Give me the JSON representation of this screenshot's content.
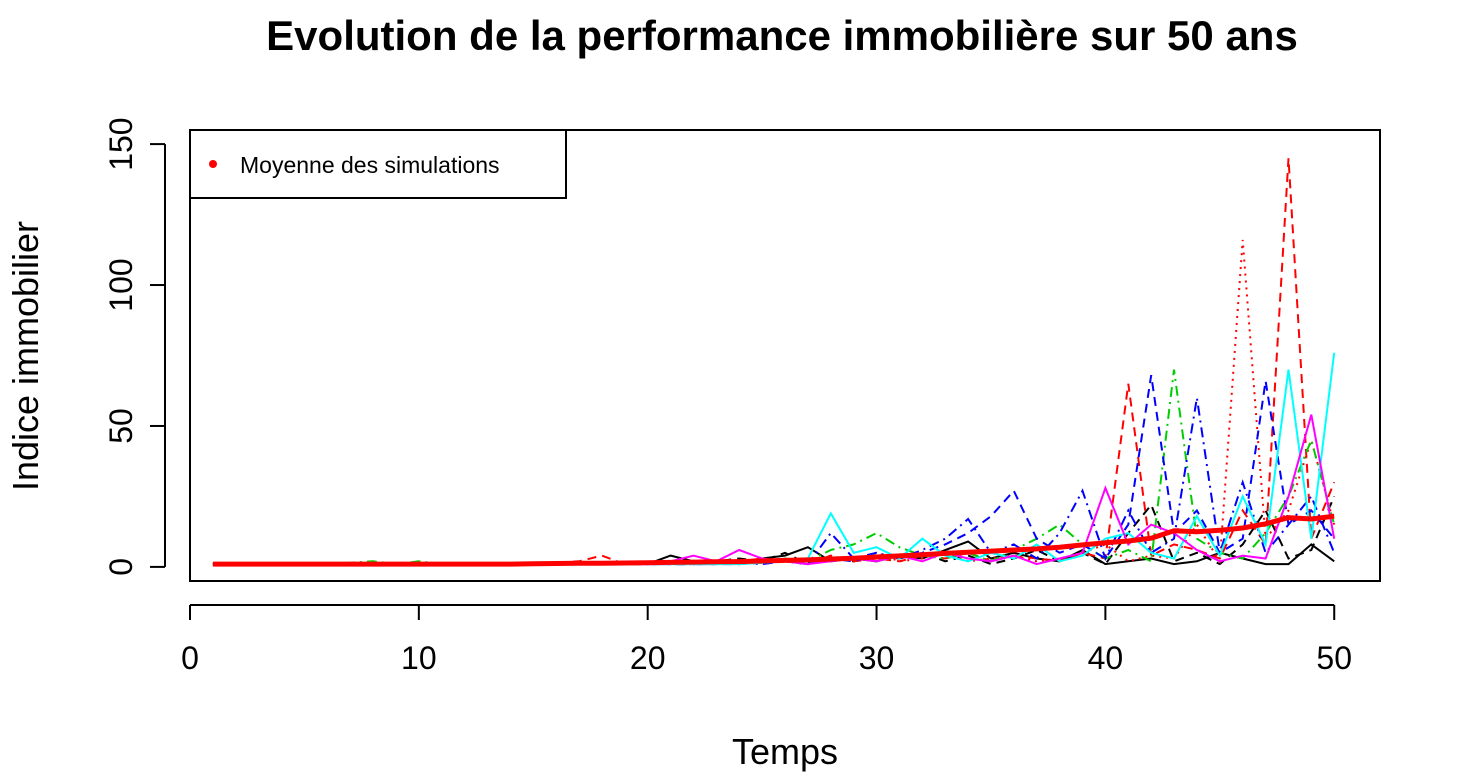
{
  "chart_data": {
    "type": "line",
    "title": "Evolution de la performance immobilière sur 50 ans",
    "xlabel": "Temps",
    "ylabel": "Indice immobilier",
    "xlim": [
      0,
      52
    ],
    "ylim": [
      -5,
      155
    ],
    "xticks": [
      0,
      10,
      20,
      30,
      40,
      50
    ],
    "yticks": [
      0,
      50,
      100,
      150
    ],
    "x": [
      1,
      2,
      3,
      4,
      5,
      6,
      7,
      8,
      9,
      10,
      11,
      12,
      13,
      14,
      15,
      16,
      17,
      18,
      19,
      20,
      21,
      22,
      23,
      24,
      25,
      26,
      27,
      28,
      29,
      30,
      31,
      32,
      33,
      34,
      35,
      36,
      37,
      38,
      39,
      40,
      41,
      42,
      43,
      44,
      45,
      46,
      47,
      48,
      49,
      50
    ],
    "legend": {
      "position": "top-left",
      "label": "Moyenne des simulations",
      "color": "#ff0000"
    },
    "mean_series": {
      "color": "#ff0000",
      "values": [
        1,
        1,
        1,
        1,
        1,
        1,
        1,
        1,
        1,
        1,
        1,
        1,
        1,
        1,
        1.1,
        1.2,
        1.3,
        1.3,
        1.4,
        1.5,
        1.6,
        1.7,
        1.8,
        1.9,
        2.1,
        2.3,
        2.5,
        2.8,
        3.1,
        3.5,
        3.9,
        4.3,
        4.8,
        5.2,
        5.6,
        6.0,
        6.4,
        7.0,
        7.8,
        8.6,
        9.2,
        10.2,
        12.8,
        12.5,
        13.0,
        13.8,
        15.3,
        17.5,
        17.0,
        18.0
      ]
    },
    "series": [
      {
        "color": "#000000",
        "dash": "",
        "values": [
          1,
          1,
          1,
          1,
          1,
          1,
          1,
          1,
          1,
          1,
          1,
          1,
          1,
          1,
          1,
          1.2,
          1,
          1.3,
          1.5,
          1,
          4,
          2,
          2,
          1.5,
          3,
          4,
          7,
          2,
          3,
          2,
          4,
          3,
          6,
          9,
          3,
          5,
          3,
          2,
          6,
          1,
          2,
          3,
          1,
          2,
          5,
          3,
          1,
          1,
          8,
          2
        ]
      },
      {
        "color": "#000000",
        "dash": "9,6",
        "values": [
          1,
          1,
          1,
          1,
          1,
          1,
          1,
          1,
          1,
          1,
          1,
          1,
          1,
          1,
          1.2,
          1.5,
          1,
          1,
          1.6,
          1.2,
          2,
          1,
          2,
          3,
          2,
          5,
          1,
          3,
          2,
          4,
          3,
          5,
          2,
          4,
          1,
          3,
          6,
          2,
          5,
          1,
          12,
          22,
          2,
          5,
          1,
          8,
          20,
          3,
          6,
          25
        ]
      },
      {
        "color": "#ff0000",
        "dash": "9,6",
        "values": [
          1,
          1,
          1,
          1,
          1,
          1,
          1,
          1,
          1,
          1,
          1,
          1,
          1,
          1,
          1,
          1.5,
          2,
          4,
          1,
          1.5,
          2,
          1,
          2,
          2,
          3,
          2,
          1,
          4,
          2,
          3,
          2,
          4,
          3,
          5,
          2,
          4,
          3,
          2,
          5,
          3,
          65,
          4,
          8,
          6,
          3,
          20,
          8,
          145,
          10,
          30
        ]
      },
      {
        "color": "#ff0000",
        "dash": "2,5",
        "values": [
          1,
          1,
          1,
          1,
          1,
          1,
          1,
          1,
          1,
          1,
          1,
          1,
          1,
          1,
          1,
          1,
          1,
          1.5,
          1,
          1.5,
          2,
          1,
          2,
          1,
          3,
          2,
          1,
          3,
          2,
          5,
          2,
          3,
          6,
          2,
          3,
          4,
          2,
          3,
          5,
          8,
          2,
          4,
          3,
          15,
          2,
          116,
          10,
          20,
          45,
          15
        ]
      },
      {
        "color": "#00cd00",
        "dash": "10,5,2,5",
        "values": [
          1,
          1,
          1,
          1,
          1,
          1,
          1.5,
          2,
          1,
          2,
          1,
          1,
          1,
          1,
          1,
          1.5,
          1,
          1,
          1,
          1.5,
          1,
          1,
          2,
          1,
          2,
          3,
          2,
          6,
          8,
          12,
          7,
          4,
          3,
          5,
          2,
          6,
          10,
          15,
          8,
          3,
          6,
          2,
          70,
          10,
          5,
          3,
          12,
          25,
          45,
          15
        ]
      },
      {
        "color": "#0000ff",
        "dash": "9,6",
        "values": [
          1,
          1,
          1,
          1,
          1,
          1,
          1,
          1,
          1,
          1,
          1,
          1,
          1,
          1,
          1,
          1,
          1,
          1,
          1,
          1,
          1,
          1,
          1,
          1,
          1.5,
          2,
          1,
          3,
          2,
          4,
          3,
          5,
          8,
          12,
          18,
          27,
          10,
          5,
          8,
          3,
          15,
          68,
          12,
          20,
          5,
          10,
          66,
          15,
          20,
          10
        ]
      },
      {
        "color": "#0000ff",
        "dash": "10,5,2,5",
        "values": [
          1,
          1,
          1,
          1,
          1,
          1,
          1,
          1,
          1,
          1,
          1,
          1,
          1,
          1,
          1,
          1,
          1,
          1,
          1,
          1,
          1,
          1,
          1,
          1.5,
          1,
          2,
          1,
          12,
          3,
          5,
          3,
          6,
          10,
          17,
          5,
          8,
          3,
          12,
          27,
          3,
          20,
          5,
          10,
          60,
          5,
          30,
          5,
          15,
          25,
          5
        ]
      },
      {
        "color": "#00ffff",
        "dash": "",
        "values": [
          1,
          1,
          1,
          1,
          1,
          1,
          1,
          1,
          1,
          1,
          1,
          1,
          1,
          1,
          1,
          1,
          1,
          1,
          1,
          1,
          1,
          1,
          1,
          1,
          1.5,
          2,
          3,
          19,
          5,
          7,
          3,
          10,
          4,
          2,
          5,
          3,
          8,
          2,
          4,
          10,
          12,
          5,
          3,
          18,
          4,
          25,
          8,
          70,
          10,
          76
        ]
      },
      {
        "color": "#ff00ff",
        "dash": "",
        "values": [
          1,
          1,
          1,
          1,
          1,
          1,
          1,
          1,
          1,
          1,
          1,
          1,
          1,
          1,
          1,
          1,
          1,
          1,
          1,
          1,
          2,
          4,
          2,
          6,
          3,
          2,
          1,
          2,
          3,
          2,
          4,
          2,
          5,
          3,
          2,
          4,
          1,
          3,
          5,
          28,
          8,
          15,
          12,
          6,
          2,
          4,
          3,
          25,
          54,
          10
        ]
      }
    ]
  }
}
